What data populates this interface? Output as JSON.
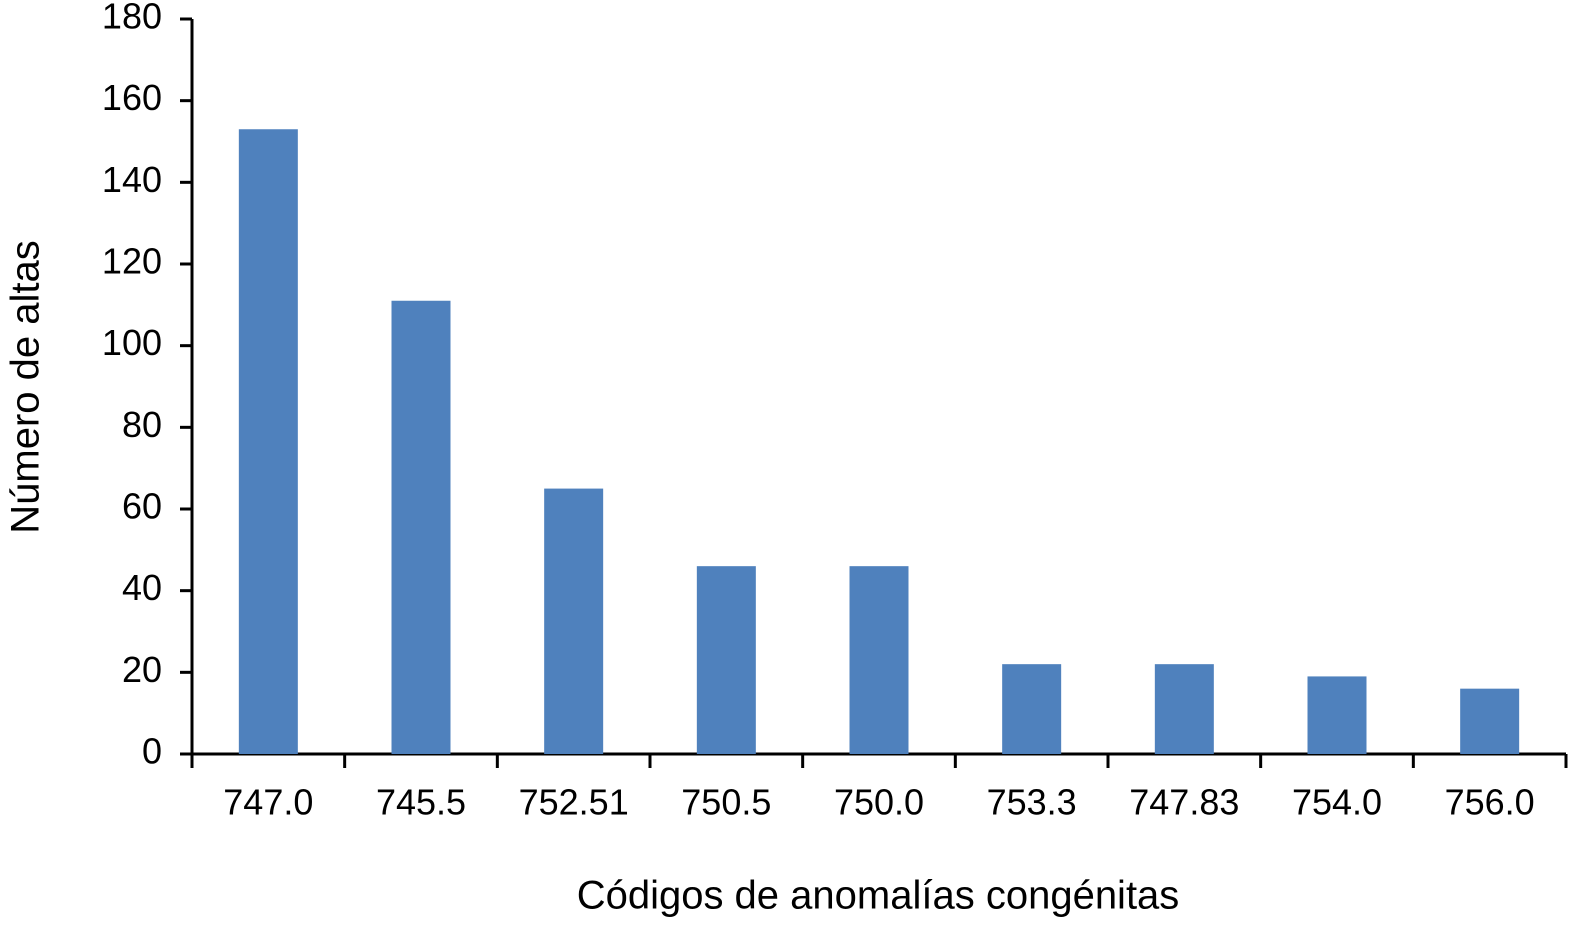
{
  "chart_data": {
    "type": "bar",
    "x_label": "Códigos de anomalías congénitas",
    "y_label": "Número de altas",
    "categories": [
      "747.0",
      "745.5",
      "752.51",
      "750.5",
      "750.0",
      "753.3",
      "747.83",
      "754.0",
      "756.0"
    ],
    "values": [
      153,
      111,
      65,
      46,
      46,
      22,
      22,
      19,
      16
    ],
    "color": "#4f81bd",
    "ylim": [
      0,
      180
    ],
    "yticks": [
      0,
      20,
      40,
      60,
      80,
      100,
      120,
      140,
      160,
      180
    ],
    "grid": false
  }
}
